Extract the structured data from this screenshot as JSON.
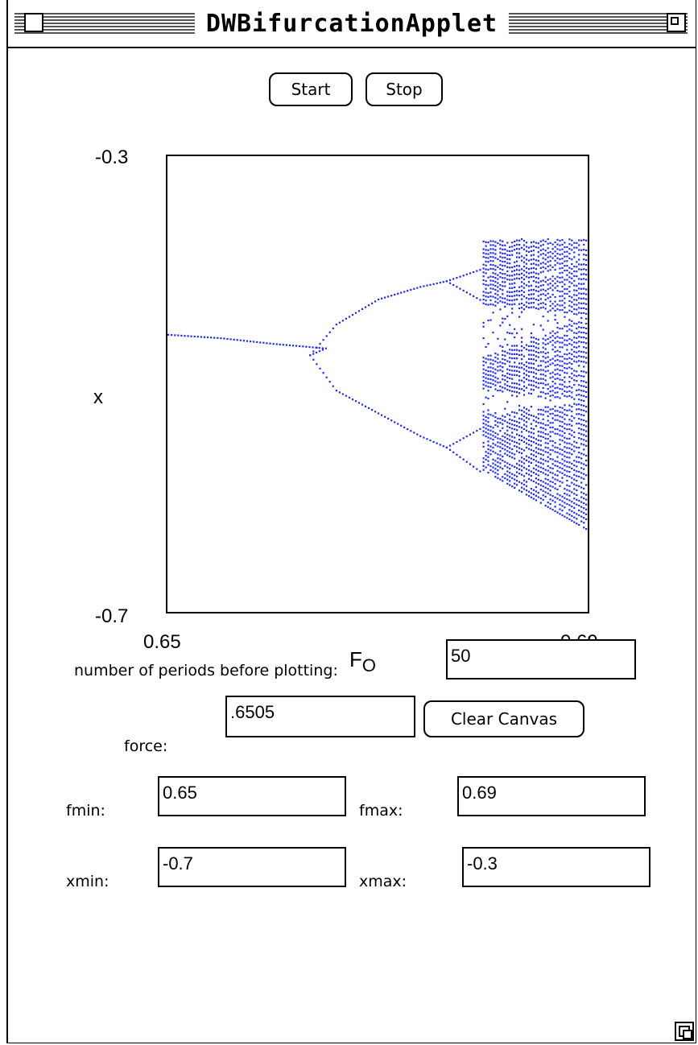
{
  "window": {
    "title": "DWBifurcationApplet"
  },
  "toolbar": {
    "start_label": "Start",
    "stop_label": "Stop"
  },
  "chart_data": {
    "type": "scatter",
    "xlabel": "F",
    "xlabel_subscript": "O",
    "ylabel": "x",
    "xlim": [
      0.65,
      0.69
    ],
    "ylim": [
      -0.7,
      -0.3
    ],
    "x_tick_labels": [
      "0.65",
      "0.69"
    ],
    "y_tick_labels": [
      "-0.3",
      "-0.7"
    ],
    "marker_color": "#1f2be8",
    "branches": {
      "period1": [
        [
          0.65,
          -0.456
        ],
        [
          0.655,
          -0.459
        ],
        [
          0.66,
          -0.464
        ],
        [
          0.665,
          -0.468
        ],
        [
          0.6635,
          -0.474
        ]
      ],
      "period2_upper": [
        [
          0.6635,
          -0.474
        ],
        [
          0.666,
          -0.447
        ],
        [
          0.67,
          -0.425
        ],
        [
          0.674,
          -0.414
        ],
        [
          0.6765,
          -0.409
        ]
      ],
      "period2_lower": [
        [
          0.6635,
          -0.474
        ],
        [
          0.666,
          -0.505
        ],
        [
          0.67,
          -0.525
        ],
        [
          0.674,
          -0.545
        ],
        [
          0.6765,
          -0.555
        ]
      ],
      "chaos_start": 0.68,
      "chaos_end": 0.69,
      "chaos_upper": -0.376,
      "chaos_lower_at_end": -0.632
    }
  },
  "form": {
    "periods_label": "number of periods before plotting:",
    "periods_value": "50",
    "force_label": "force:",
    "force_value": ".6505",
    "clear_label": "Clear Canvas",
    "fmin_label": "fmin:",
    "fmin_value": "0.65",
    "fmax_label": "fmax:",
    "fmax_value": "0.69",
    "xmin_label": "xmin:",
    "xmin_value": "-0.7",
    "xmax_label": "xmax:",
    "xmax_value": "-0.3"
  },
  "colors": {
    "plot_points": "#1f2be8",
    "frame": "#000000",
    "background": "#ffffff"
  }
}
